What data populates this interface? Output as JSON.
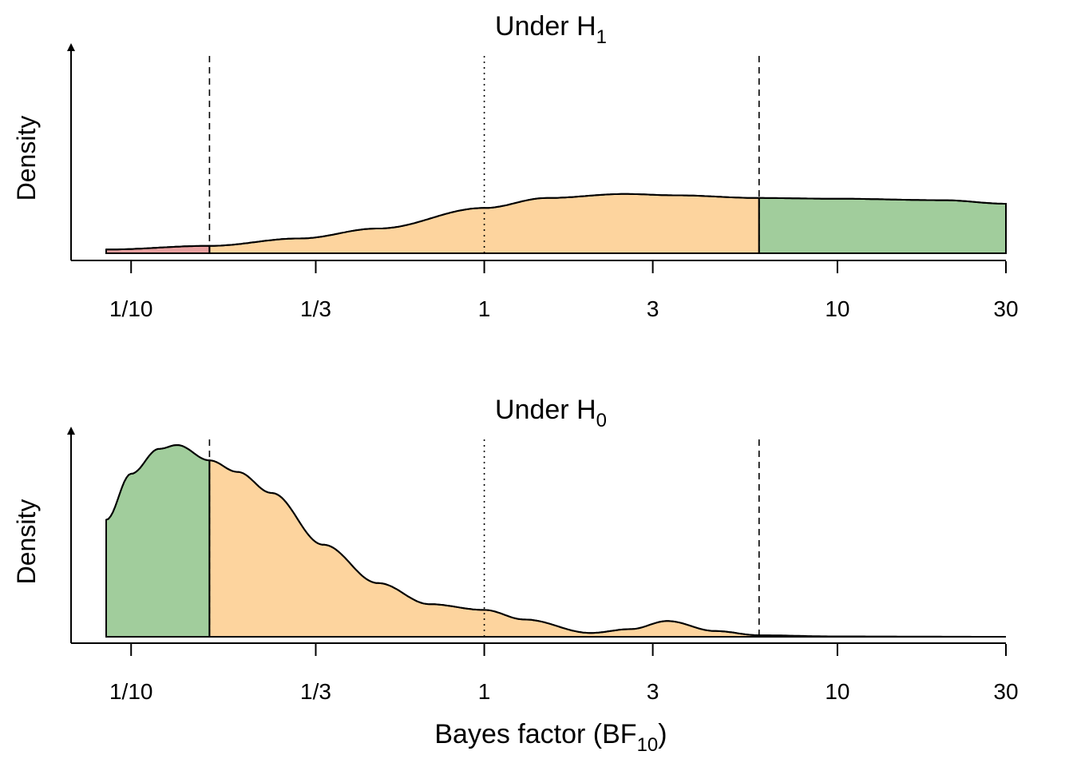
{
  "colors": {
    "red_region": "#E8A0A0",
    "yellow_region": "#FDD49E",
    "green_region": "#A1CD9C",
    "line": "#000000",
    "background": "#FFFFFF"
  },
  "chart_data": [
    {
      "type": "area",
      "title": "Under H",
      "title_subscript": "1",
      "ylabel": "Density",
      "xlabel": "",
      "x_scale": "log",
      "xlim": [
        0.085,
        30
      ],
      "ylim": [
        0,
        1
      ],
      "x_ticks": [
        0.1,
        0.3333,
        1,
        3,
        10,
        30
      ],
      "x_tick_labels": [
        "1/10",
        "1/3",
        "1",
        "3",
        "10",
        "30"
      ],
      "reference_lines": [
        {
          "x": 0.1667,
          "style": "dashed"
        },
        {
          "x": 1,
          "style": "dotted"
        },
        {
          "x": 6,
          "style": "dashed"
        }
      ],
      "density": {
        "x": [
          0.085,
          0.1667,
          0.3,
          0.5,
          1,
          1.5,
          2.5,
          3.5,
          6,
          10,
          20,
          30
        ],
        "y": [
          0.031,
          0.061,
          0.122,
          0.204,
          0.373,
          0.455,
          0.488,
          0.477,
          0.455,
          0.449,
          0.437,
          0.408
        ]
      },
      "regions": [
        {
          "from": 0.085,
          "to": 0.1667,
          "color": "red"
        },
        {
          "from": 0.1667,
          "to": 6,
          "color": "yellow"
        },
        {
          "from": 6,
          "to": 30,
          "color": "green"
        }
      ]
    },
    {
      "type": "area",
      "title": "Under H",
      "title_subscript": "0",
      "ylabel": "Density",
      "xlabel": "Bayes factor (BF",
      "xlabel_subscript": "10",
      "xlabel_suffix": ")",
      "x_scale": "log",
      "xlim": [
        0.085,
        30
      ],
      "ylim": [
        0,
        1
      ],
      "x_ticks": [
        0.1,
        0.3333,
        1,
        3,
        10,
        30
      ],
      "x_tick_labels": [
        "1/10",
        "1/3",
        "1",
        "3",
        "10",
        "30"
      ],
      "reference_lines": [
        {
          "x": 0.1667,
          "style": "dashed"
        },
        {
          "x": 1,
          "style": "dotted"
        },
        {
          "x": 6,
          "style": "dashed"
        }
      ],
      "density": {
        "x": [
          0.085,
          0.1,
          0.12,
          0.135,
          0.1667,
          0.2,
          0.25,
          0.35,
          0.5,
          0.7,
          1,
          1.3,
          2,
          2.6,
          3.3,
          4.5,
          6,
          10,
          30
        ],
        "y": [
          0.61,
          0.85,
          0.98,
          1.0,
          0.92,
          0.86,
          0.75,
          0.48,
          0.28,
          0.17,
          0.14,
          0.09,
          0.02,
          0.04,
          0.082,
          0.03,
          0.008,
          0.002,
          0.0
        ]
      },
      "regions": [
        {
          "from": 0.085,
          "to": 0.1667,
          "color": "green"
        },
        {
          "from": 0.1667,
          "to": 6,
          "color": "yellow"
        },
        {
          "from": 6,
          "to": 30,
          "color": "none"
        }
      ]
    }
  ]
}
